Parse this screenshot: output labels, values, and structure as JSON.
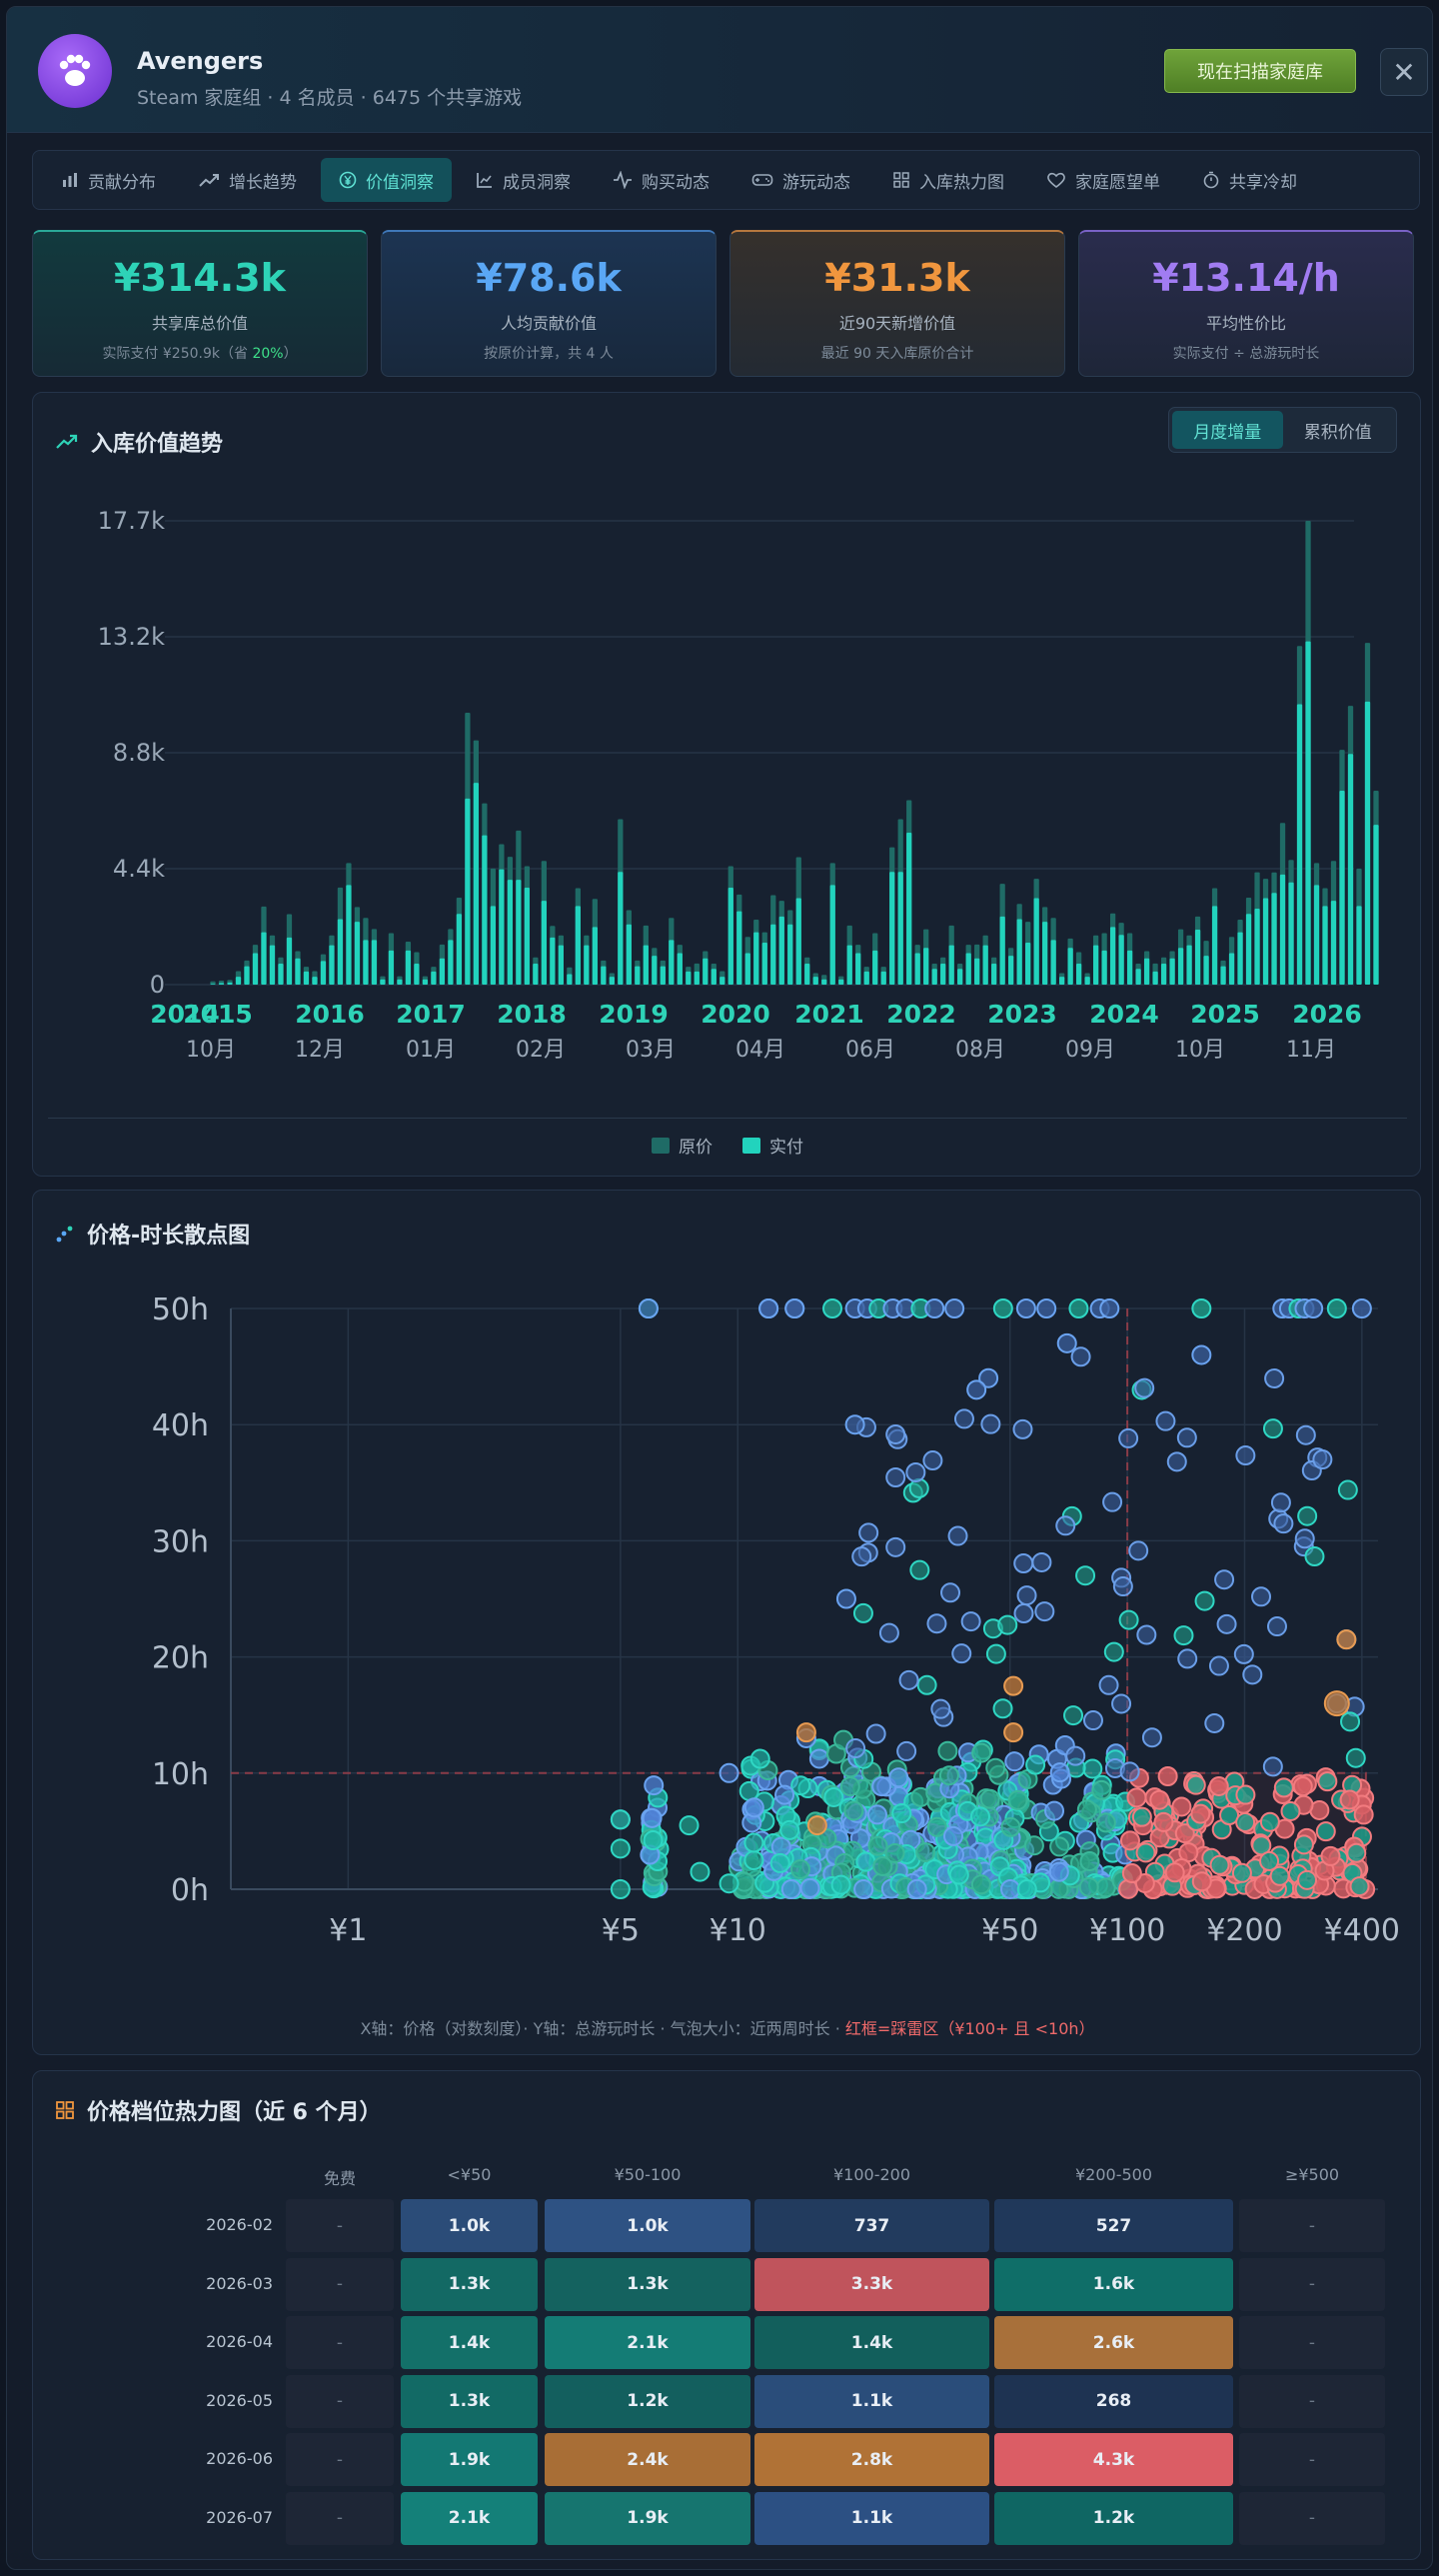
{
  "header": {
    "group_name": "Avengers",
    "subtitle": "Steam 家庭组 · 4 名成员 · 6475 个共享游戏",
    "scan_label": "现在扫描家庭库",
    "close_glyph": "✕"
  },
  "tabs": [
    {
      "label": "贡献分布",
      "icon": "bar-chart-icon"
    },
    {
      "label": "增长趋势",
      "icon": "trend-up-icon"
    },
    {
      "label": "价值洞察",
      "icon": "yen-circle-icon",
      "active": true
    },
    {
      "label": "成员洞察",
      "icon": "member-chart-icon"
    },
    {
      "label": "购买动态",
      "icon": "activity-icon"
    },
    {
      "label": "游玩动态",
      "icon": "gamepad-icon"
    },
    {
      "label": "入库热力图",
      "icon": "grid-icon"
    },
    {
      "label": "家庭愿望单",
      "icon": "heart-icon"
    },
    {
      "label": "共享冷却",
      "icon": "timer-icon"
    }
  ],
  "stats": [
    {
      "value": "¥314.3k",
      "label": "共享库总价值",
      "sub_prefix": "实际支付 ¥250.9k（省 ",
      "sub_highlight": "20%",
      "sub_suffix": "）",
      "color": "#2ed3b7"
    },
    {
      "value": "¥78.6k",
      "label": "人均贡献价值",
      "sub": "按原价计算，共 4 人",
      "color": "#5aa7f5"
    },
    {
      "value": "¥31.3k",
      "label": "近90天新增价值",
      "sub": "最近 90 天入库原价合计",
      "color": "#f0963e"
    },
    {
      "value": "¥13.14/h",
      "label": "平均性价比",
      "sub": "实际支付 ÷ 总游玩时长",
      "color": "#a17cf2"
    }
  ],
  "trend": {
    "title": "入库价值趋势",
    "toggle": [
      "月度增量",
      "累积价值"
    ],
    "legend": [
      "原价",
      "实付"
    ]
  },
  "scatter": {
    "title": "价格-时长散点图",
    "caption_prefix": "X轴：价格（对数刻度）· Y轴：总游玩时长 · 气泡大小：近两周时长 · ",
    "caption_highlight": "红框=踩雷区（¥100+ 且 <10h）"
  },
  "heatmap": {
    "title": "价格档位热力图（近 6 个月）",
    "columns": [
      "免费",
      "<¥50",
      "¥50-100",
      "¥100-200",
      "¥200-500",
      "≥¥500"
    ],
    "rows": [
      {
        "month": "2026-02",
        "cells": [
          "-",
          "1.0k",
          "1.0k",
          "737",
          "527",
          "-"
        ]
      },
      {
        "month": "2026-03",
        "cells": [
          "-",
          "1.3k",
          "1.3k",
          "3.3k",
          "1.6k",
          "-"
        ]
      },
      {
        "month": "2026-04",
        "cells": [
          "-",
          "1.4k",
          "2.1k",
          "1.4k",
          "2.6k",
          "-"
        ]
      },
      {
        "month": "2026-05",
        "cells": [
          "-",
          "1.3k",
          "1.2k",
          "1.1k",
          "268",
          "-"
        ]
      },
      {
        "month": "2026-06",
        "cells": [
          "-",
          "1.9k",
          "2.4k",
          "2.8k",
          "4.3k",
          "-"
        ]
      },
      {
        "month": "2026-07",
        "cells": [
          "-",
          "2.1k",
          "1.9k",
          "1.1k",
          "1.2k",
          "-"
        ]
      }
    ],
    "cell_colors": [
      [
        "#1e2636",
        "#2b4c78",
        "#2e5283",
        "#223b5e",
        "#20385a",
        "#1e2636"
      ],
      [
        "#1e2636",
        "#136964",
        "#14625f",
        "#c0545c",
        "#0f6e68",
        "#1e2636"
      ],
      [
        "#1e2636",
        "#137069",
        "#147c75",
        "#125f5c",
        "#a8703a",
        "#1e2636"
      ],
      [
        "#1e2636",
        "#126a65",
        "#135f5e",
        "#2a4d7a",
        "#1e3352",
        "#1e2636"
      ],
      [
        "#1e2636",
        "#137873",
        "#a86e36",
        "#b07236",
        "#db5d65",
        "#1e2636"
      ],
      [
        "#1e2636",
        "#148079",
        "#16756f",
        "#2c5083",
        "#0f6663",
        "#1e2636"
      ]
    ]
  },
  "chart_data": [
    {
      "type": "bar",
      "title": "入库价值趋势",
      "ylim": [
        0,
        17700
      ],
      "y_ticks": [
        "0",
        "4.4k",
        "8.8k",
        "13.2k",
        "17.7k"
      ],
      "year_ticks": [
        "2014",
        "2015",
        "2016",
        "2017",
        "2018",
        "2019",
        "2020",
        "2021",
        "2022",
        "2023",
        "2024",
        "2025",
        "2026"
      ],
      "month_ticks": [
        "10月",
        "12月",
        "01月",
        "02月",
        "03月",
        "04月",
        "06月",
        "08月",
        "09月",
        "10月",
        "11月"
      ],
      "series": [
        {
          "name": "原价",
          "color": "#1f6b66"
        },
        {
          "name": "实付",
          "color": "#22d3bd"
        }
      ],
      "values_paid": [
        30,
        60,
        80,
        300,
        700,
        1200,
        2000,
        1500,
        800,
        1800,
        1000,
        500,
        300,
        900,
        1500,
        2500,
        3800,
        2400,
        1700,
        1700,
        200,
        1300,
        200,
        1300,
        800,
        200,
        500,
        1000,
        1700,
        2700,
        7100,
        7700,
        5700,
        3000,
        4400,
        4000,
        4000,
        3700,
        800,
        3200,
        1800,
        1500,
        400,
        3000,
        1500,
        2200,
        700,
        300,
        4300,
        2300,
        700,
        1500,
        1100,
        700,
        1700,
        1200,
        500,
        500,
        1000,
        600,
        300,
        3700,
        2800,
        1200,
        2000,
        1600,
        2300,
        2600,
        2300,
        3300,
        800,
        300,
        200,
        3800,
        200,
        1500,
        1200,
        500,
        1300,
        500,
        4300,
        4300,
        5800,
        1200,
        1400,
        600,
        800,
        1500,
        600,
        1200,
        1000,
        1500,
        800,
        2600,
        1100,
        2500,
        1600,
        3300,
        2400,
        1700,
        300,
        1400,
        800,
        300,
        1500,
        1300,
        2200,
        1900,
        1300,
        600,
        1000,
        500,
        800,
        1000,
        1400,
        1500,
        2100,
        1100,
        3000,
        700,
        1200,
        2000,
        2700,
        2900,
        3300,
        3500,
        4200,
        3900,
        10700,
        13100,
        3800,
        3000,
        3200,
        7400,
        8800,
        3000,
        10800,
        6100
      ],
      "values_list_approx": "原价 bars ≈ 1.15–1.6× 实付"
    },
    {
      "type": "scatter",
      "title": "价格-时长散点图",
      "x_scale": "log",
      "x_ticks": [
        "¥1",
        "¥5",
        "¥10",
        "¥50",
        "¥100",
        "¥200",
        "¥400"
      ],
      "y_ticks": [
        "0h",
        "10h",
        "20h",
        "30h",
        "40h",
        "50h"
      ],
      "ylim": [
        0,
        50
      ],
      "danger_zone": {
        "x_min": 100,
        "x_max": 400,
        "y_min": 0,
        "y_max": 10
      },
      "notable_points": [
        {
          "x": 5.9,
          "y": 50
        },
        {
          "x": 12,
          "y": 50
        },
        {
          "x": 14,
          "y": 50
        },
        {
          "x": 44,
          "y": 44
        },
        {
          "x": 41,
          "y": 43
        },
        {
          "x": 19,
          "y": 25
        },
        {
          "x": 20,
          "y": 40
        },
        {
          "x": 70,
          "y": 47
        },
        {
          "x": 155,
          "y": 46
        },
        {
          "x": 365,
          "y": 21.5
        },
        {
          "x": 345,
          "y": 16
        },
        {
          "x": 9.5,
          "y": 10
        },
        {
          "x": 5,
          "y": 6
        },
        {
          "x": 15,
          "y": 13
        }
      ]
    }
  ]
}
